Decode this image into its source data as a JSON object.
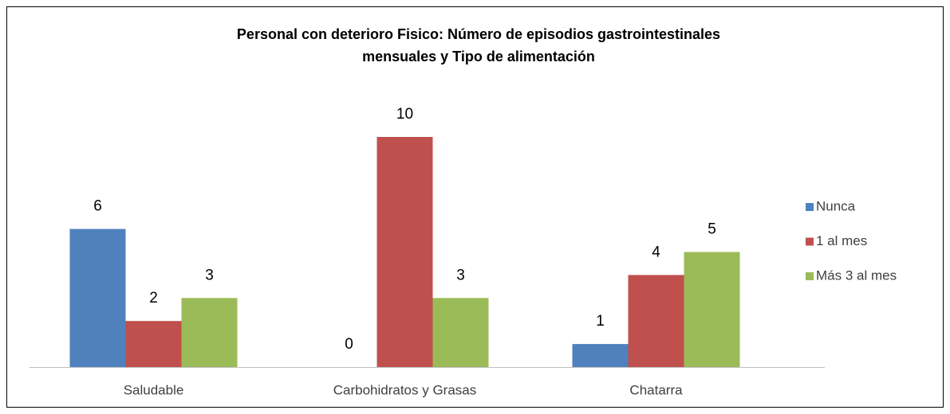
{
  "chart_data": {
    "type": "bar",
    "title": [
      "Personal con deterioro Fisico: Número de episodios gastrointestinales",
      "mensuales y  Tipo de alimentación"
    ],
    "categories": [
      "Saludable",
      "Carbohidratos y Grasas",
      "Chatarra"
    ],
    "series": [
      {
        "name": "Nunca",
        "color": "#4f81bd",
        "values": [
          6,
          0,
          1
        ]
      },
      {
        "name": "1 al mes",
        "color": "#c0504d",
        "values": [
          2,
          10,
          4
        ]
      },
      {
        "name": "Más 3 al mes",
        "color": "#9bbb59",
        "values": [
          3,
          3,
          5
        ]
      }
    ],
    "ylim": [
      0,
      10
    ],
    "legend": "right"
  }
}
